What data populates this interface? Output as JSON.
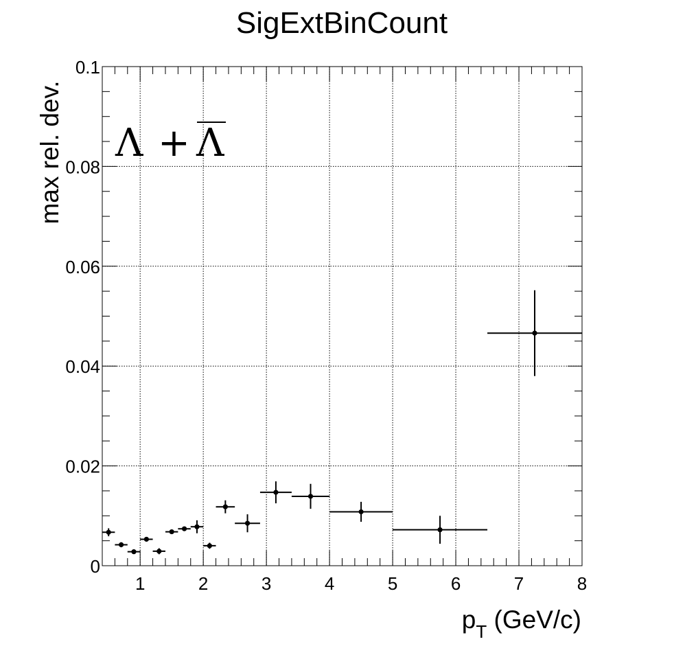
{
  "chart_data": {
    "type": "scatter",
    "title": "SigExtBinCount",
    "xlabel_main": "p",
    "xlabel_sub": "T",
    "xlabel_unit": " (GeV/c)",
    "ylabel": "max rel. dev.",
    "annotation": {
      "left": "Λ",
      "plus": "+",
      "right": "Λ"
    },
    "xlim": [
      0.4,
      8.0
    ],
    "ylim": [
      0.0,
      0.1
    ],
    "x_ticks": [
      1,
      2,
      3,
      4,
      5,
      6,
      7,
      8
    ],
    "x_tick_labels": [
      "1",
      "2",
      "3",
      "4",
      "5",
      "6",
      "7",
      "8"
    ],
    "y_ticks": [
      0.0,
      0.02,
      0.04,
      0.06,
      0.08,
      0.1
    ],
    "y_tick_labels": [
      "0",
      "0.02",
      "0.04",
      "0.06",
      "0.08",
      "0.1"
    ],
    "grid": true,
    "marker_color": "#000000",
    "points": [
      {
        "x": 0.5,
        "xlo": 0.4,
        "xhi": 0.6,
        "y": 0.0067,
        "ey": 0.0008
      },
      {
        "x": 0.7,
        "xlo": 0.6,
        "xhi": 0.8,
        "y": 0.0042,
        "ey": 0.0005
      },
      {
        "x": 0.9,
        "xlo": 0.8,
        "xhi": 1.0,
        "y": 0.0028,
        "ey": 0.0004
      },
      {
        "x": 1.1,
        "xlo": 1.0,
        "xhi": 1.2,
        "y": 0.0053,
        "ey": 0.0004
      },
      {
        "x": 1.3,
        "xlo": 1.2,
        "xhi": 1.4,
        "y": 0.0029,
        "ey": 0.0006
      },
      {
        "x": 1.5,
        "xlo": 1.4,
        "xhi": 1.6,
        "y": 0.0068,
        "ey": 0.0004
      },
      {
        "x": 1.7,
        "xlo": 1.6,
        "xhi": 1.8,
        "y": 0.0074,
        "ey": 0.0004
      },
      {
        "x": 1.9,
        "xlo": 1.8,
        "xhi": 2.0,
        "y": 0.0078,
        "ey": 0.0013
      },
      {
        "x": 2.1,
        "xlo": 2.0,
        "xhi": 2.2,
        "y": 0.004,
        "ey": 0.0006
      },
      {
        "x": 2.35,
        "xlo": 2.2,
        "xhi": 2.5,
        "y": 0.0118,
        "ey": 0.0013
      },
      {
        "x": 2.7,
        "xlo": 2.5,
        "xhi": 2.9,
        "y": 0.0085,
        "ey": 0.0018
      },
      {
        "x": 3.15,
        "xlo": 2.9,
        "xhi": 3.4,
        "y": 0.0147,
        "ey": 0.0022
      },
      {
        "x": 3.7,
        "xlo": 3.4,
        "xhi": 4.0,
        "y": 0.0139,
        "ey": 0.0025
      },
      {
        "x": 4.5,
        "xlo": 4.0,
        "xhi": 5.0,
        "y": 0.0108,
        "ey": 0.002
      },
      {
        "x": 5.75,
        "xlo": 5.0,
        "xhi": 6.5,
        "y": 0.0072,
        "ey": 0.0028
      },
      {
        "x": 7.25,
        "xlo": 6.5,
        "xhi": 8.0,
        "y": 0.0466,
        "ey": 0.0086
      }
    ]
  }
}
